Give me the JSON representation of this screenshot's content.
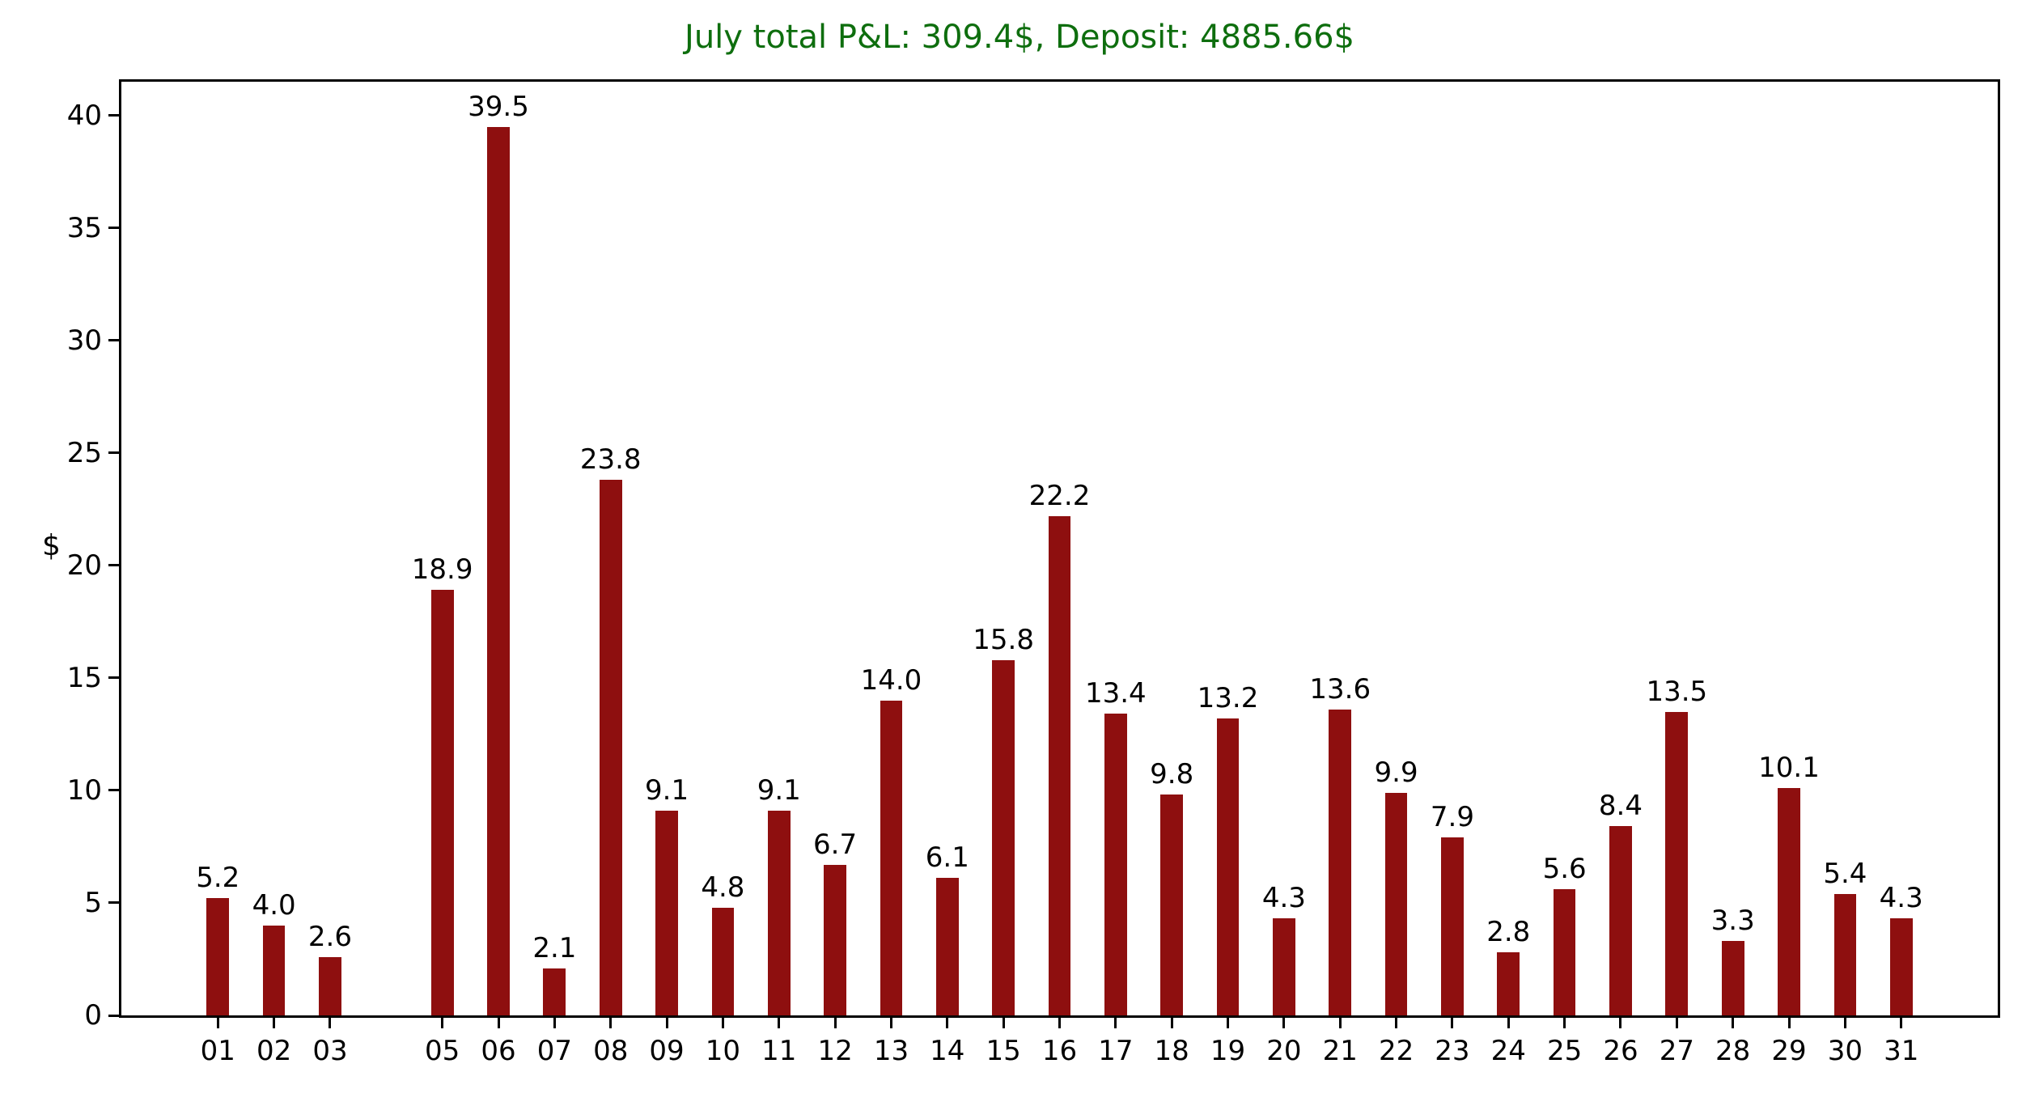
{
  "figure": {
    "background": "#ffffff"
  },
  "chart_data": {
    "type": "bar",
    "title": "July total P&L: 309.4$, Deposit: 4885.66$",
    "title_color": "#0e6e0e",
    "xlabel": "",
    "ylabel": "$",
    "categories": [
      "01",
      "02",
      "03",
      "05",
      "06",
      "07",
      "08",
      "09",
      "10",
      "11",
      "12",
      "13",
      "14",
      "15",
      "16",
      "17",
      "18",
      "19",
      "20",
      "21",
      "22",
      "23",
      "24",
      "25",
      "26",
      "27",
      "28",
      "29",
      "30",
      "31"
    ],
    "x": [
      1,
      2,
      3,
      5,
      6,
      7,
      8,
      9,
      10,
      11,
      12,
      13,
      14,
      15,
      16,
      17,
      18,
      19,
      20,
      21,
      22,
      23,
      24,
      25,
      26,
      27,
      28,
      29,
      30,
      31
    ],
    "values": [
      5.2,
      4.0,
      2.6,
      18.9,
      39.5,
      2.1,
      23.8,
      9.1,
      4.8,
      9.1,
      6.7,
      14.0,
      6.1,
      15.8,
      22.2,
      13.4,
      9.8,
      13.2,
      4.3,
      13.6,
      9.9,
      7.9,
      2.8,
      5.6,
      8.4,
      13.5,
      3.3,
      10.1,
      5.4,
      4.3
    ],
    "value_label_decimals": 1,
    "bar_color": "#8e0f0f",
    "axis_color": "#000000",
    "yticks": [
      0,
      5,
      10,
      15,
      20,
      25,
      30,
      35,
      40
    ],
    "ylim": [
      0,
      41.5
    ],
    "xlim": [
      -0.72,
      32.72
    ],
    "bar_width_days": 0.4,
    "grid": false,
    "legend": null,
    "missing_days": [
      "04"
    ]
  }
}
